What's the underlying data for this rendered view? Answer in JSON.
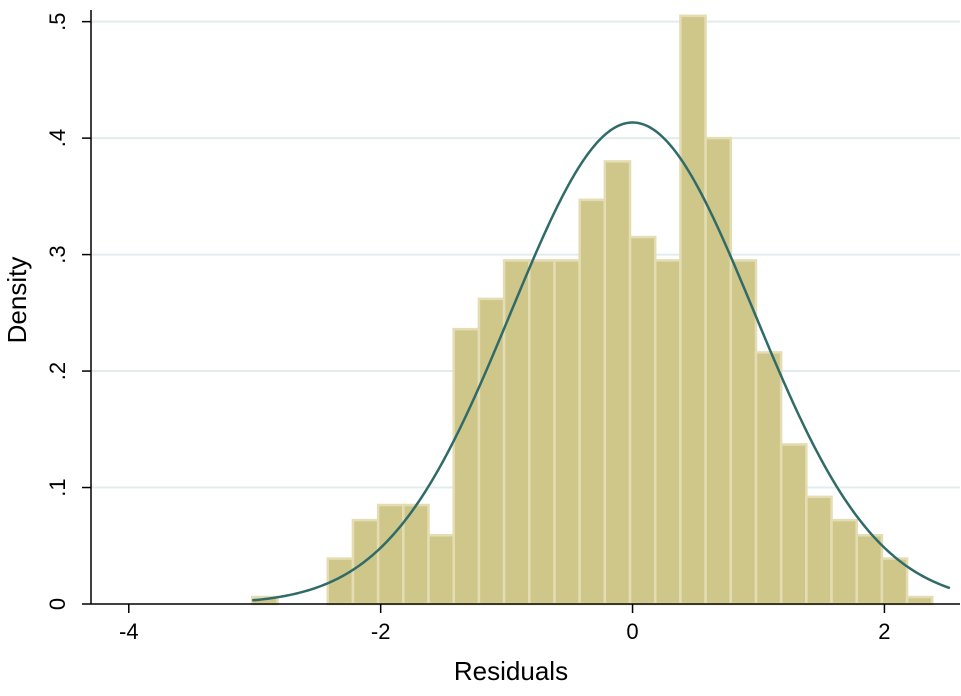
{
  "chart_data": {
    "type": "bar",
    "xlabel": "Residuals",
    "ylabel": "Density",
    "xlim": [
      -4.3,
      2.6
    ],
    "ylim": [
      0,
      0.51
    ],
    "grid": true,
    "x_ticks": [
      {
        "value": -4,
        "label": "-4"
      },
      {
        "value": -2,
        "label": "-2"
      },
      {
        "value": 0,
        "label": "0"
      },
      {
        "value": 2,
        "label": "2"
      }
    ],
    "y_ticks": [
      {
        "value": 0,
        "label": "0"
      },
      {
        "value": 0.1,
        "label": ".1"
      },
      {
        "value": 0.2,
        "label": ".2"
      },
      {
        "value": 0.3,
        "label": ".3"
      },
      {
        "value": 0.4,
        "label": ".4"
      },
      {
        "value": 0.5,
        "label": ".5"
      }
    ],
    "bins": [
      {
        "x0": -3.02,
        "x1": -2.82,
        "density": 0.006
      },
      {
        "x0": -2.82,
        "x1": -2.62,
        "density": 0.0
      },
      {
        "x0": -2.62,
        "x1": -2.42,
        "density": 0.0
      },
      {
        "x0": -2.42,
        "x1": -2.22,
        "density": 0.039
      },
      {
        "x0": -2.22,
        "x1": -2.02,
        "density": 0.072
      },
      {
        "x0": -2.02,
        "x1": -1.82,
        "density": 0.085
      },
      {
        "x0": -1.82,
        "x1": -1.62,
        "density": 0.085
      },
      {
        "x0": -1.62,
        "x1": -1.42,
        "density": 0.059
      },
      {
        "x0": -1.42,
        "x1": -1.22,
        "density": 0.236
      },
      {
        "x0": -1.22,
        "x1": -1.02,
        "density": 0.262
      },
      {
        "x0": -1.02,
        "x1": -0.82,
        "density": 0.295
      },
      {
        "x0": -0.82,
        "x1": -0.62,
        "density": 0.295
      },
      {
        "x0": -0.62,
        "x1": -0.42,
        "density": 0.295
      },
      {
        "x0": -0.42,
        "x1": -0.22,
        "density": 0.347
      },
      {
        "x0": -0.22,
        "x1": -0.02,
        "density": 0.38
      },
      {
        "x0": -0.02,
        "x1": 0.18,
        "density": 0.315
      },
      {
        "x0": 0.18,
        "x1": 0.38,
        "density": 0.295
      },
      {
        "x0": 0.38,
        "x1": 0.58,
        "density": 0.505
      },
      {
        "x0": 0.58,
        "x1": 0.78,
        "density": 0.4
      },
      {
        "x0": 0.78,
        "x1": 0.98,
        "density": 0.295
      },
      {
        "x0": 0.98,
        "x1": 1.18,
        "density": 0.216
      },
      {
        "x0": 1.18,
        "x1": 1.38,
        "density": 0.137
      },
      {
        "x0": 1.38,
        "x1": 1.58,
        "density": 0.092
      },
      {
        "x0": 1.58,
        "x1": 1.78,
        "density": 0.072
      },
      {
        "x0": 1.78,
        "x1": 1.98,
        "density": 0.059
      },
      {
        "x0": 1.98,
        "x1": 2.18,
        "density": 0.039
      },
      {
        "x0": 2.18,
        "x1": 2.38,
        "density": 0.006
      }
    ],
    "normal_curve": {
      "mean": 0,
      "sd": 0.965,
      "x_range": [
        -3.02,
        2.52
      ]
    },
    "colors": {
      "bar_fill": "#cfc68a",
      "bar_stroke": "#e4ddb3",
      "curve": "#2f6b68",
      "grid": "#e3ecec",
      "axis": "#000000"
    }
  }
}
